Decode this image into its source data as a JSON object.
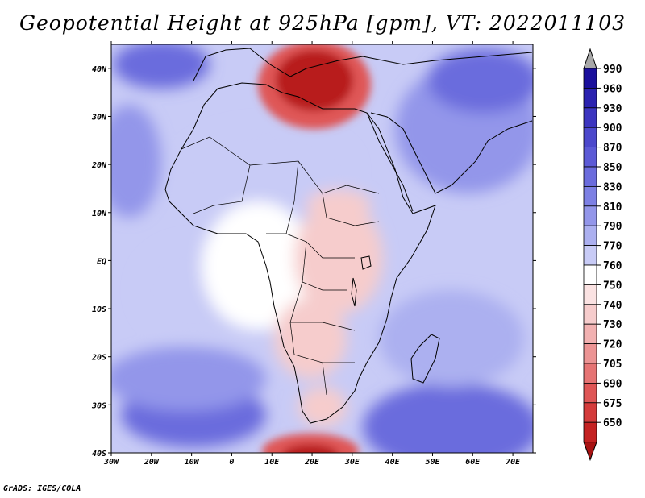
{
  "title": "Geopotential Height at 925hPa [gpm], VT: 2022011103",
  "credit": "GrADS: IGES/COLA",
  "map": {
    "lon_range": [
      -30,
      75
    ],
    "lat_range": [
      -40,
      45
    ],
    "x_ticks": [
      {
        "lon": -30,
        "label": "30W"
      },
      {
        "lon": -20,
        "label": "20W"
      },
      {
        "lon": -10,
        "label": "10W"
      },
      {
        "lon": 0,
        "label": "0"
      },
      {
        "lon": 10,
        "label": "10E"
      },
      {
        "lon": 20,
        "label": "20E"
      },
      {
        "lon": 30,
        "label": "30E"
      },
      {
        "lon": 40,
        "label": "40E"
      },
      {
        "lon": 50,
        "label": "50E"
      },
      {
        "lon": 60,
        "label": "60E"
      },
      {
        "lon": 70,
        "label": "70E"
      }
    ],
    "y_ticks": [
      {
        "lat": 40,
        "label": "40N"
      },
      {
        "lat": 30,
        "label": "30N"
      },
      {
        "lat": 20,
        "label": "20N"
      },
      {
        "lat": 10,
        "label": "10N"
      },
      {
        "lat": 0,
        "label": "EQ"
      },
      {
        "lat": -10,
        "label": "10S"
      },
      {
        "lat": -20,
        "label": "20S"
      },
      {
        "lat": -30,
        "label": "30S"
      },
      {
        "lat": -40,
        "label": "40S"
      }
    ]
  },
  "colorbar": {
    "top_color": "#a8a8a8",
    "levels": [
      {
        "label": "990",
        "color": "#1a0f9c"
      },
      {
        "label": "960",
        "color": "#2b22b0"
      },
      {
        "label": "930",
        "color": "#3c35c0"
      },
      {
        "label": "900",
        "color": "#4c48cc"
      },
      {
        "label": "870",
        "color": "#5c5ad6"
      },
      {
        "label": "850",
        "color": "#6b6cdd"
      },
      {
        "label": "830",
        "color": "#7d80e4"
      },
      {
        "label": "810",
        "color": "#9396ea"
      },
      {
        "label": "790",
        "color": "#acb0f0"
      },
      {
        "label": "770",
        "color": "#c8cbf6"
      },
      {
        "label": "760",
        "color": "#ffffff"
      },
      {
        "label": "750",
        "color": "#fae2e2"
      },
      {
        "label": "740",
        "color": "#f6cccc"
      },
      {
        "label": "730",
        "color": "#f2b1b1"
      },
      {
        "label": "720",
        "color": "#ec9494"
      },
      {
        "label": "705",
        "color": "#e67474"
      },
      {
        "label": "690",
        "color": "#df5656"
      },
      {
        "label": "675",
        "color": "#d43b3b"
      },
      {
        "label": "650",
        "color": "#c42222"
      }
    ],
    "bottom_color": "#a81212"
  },
  "field_colors": {
    "ocean_deep": "#6b6cdd",
    "ocean_mid": "#9396ea",
    "ocean_light": "#acb0f0",
    "land_pale": "#c8cbf6",
    "neutral": "#ffffff",
    "pink": "#f6cccc",
    "red_core": "#b81a1a",
    "red_mid": "#df5656"
  }
}
